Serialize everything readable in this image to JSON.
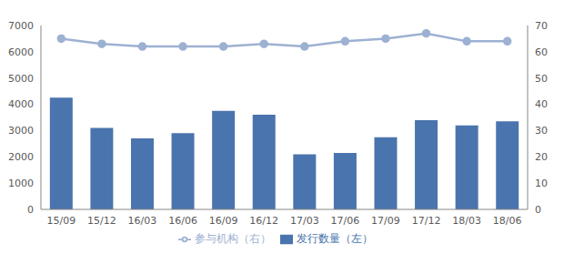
{
  "chart_data": {
    "type": "bar",
    "categories": [
      "15/09",
      "15/12",
      "16/03",
      "16/06",
      "16/09",
      "16/12",
      "17/03",
      "17/06",
      "17/09",
      "17/12",
      "18/03",
      "18/06"
    ],
    "series": [
      {
        "name": "发行数量（左）",
        "type": "bar",
        "color": "#4a74ad",
        "values": [
          4250,
          3100,
          2700,
          2900,
          3750,
          3600,
          2100,
          2150,
          2750,
          3400,
          3200,
          3350
        ]
      },
      {
        "name": "参与机构（右）",
        "type": "line",
        "axis": "y2",
        "color": "#9db1d2",
        "marker": "circle",
        "values": [
          65,
          63,
          62,
          62,
          62,
          63,
          62,
          64,
          65,
          67,
          64,
          64
        ]
      }
    ],
    "ylim": [
      0,
      7000
    ],
    "yticks": [
      0,
      1000,
      2000,
      3000,
      4000,
      5000,
      6000,
      7000
    ],
    "y2lim": [
      0,
      70
    ],
    "y2ticks": [
      0,
      10,
      20,
      30,
      40,
      50,
      60,
      70
    ],
    "grid": false,
    "legend": "bottom"
  }
}
